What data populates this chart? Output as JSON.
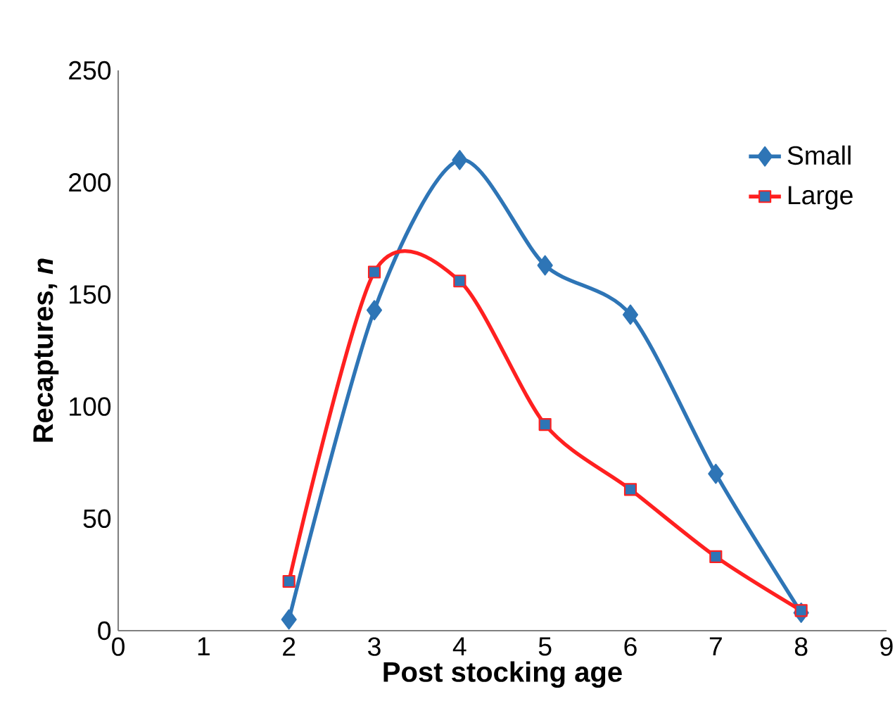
{
  "chart_data": {
    "type": "line",
    "xlabel": "Post stocking age",
    "ylabel": "Recaptures, *n*",
    "x": [
      2,
      3,
      4,
      5,
      6,
      7,
      8
    ],
    "series": [
      {
        "name": "Small",
        "color": "#2e75b6",
        "marker": "diamond",
        "values": [
          5,
          143,
          210,
          163,
          141,
          70,
          8
        ]
      },
      {
        "name": "Large",
        "color": "#ff2020",
        "marker": "square",
        "values": [
          22,
          160,
          156,
          92,
          63,
          33,
          9
        ]
      }
    ],
    "xlim": [
      0,
      9
    ],
    "xticks": [
      0,
      1,
      2,
      3,
      4,
      5,
      6,
      7,
      8,
      9
    ],
    "ylim": [
      0,
      250
    ],
    "yticks": [
      0,
      50,
      100,
      150,
      200,
      250
    ],
    "grid": false,
    "legend": "top right"
  }
}
